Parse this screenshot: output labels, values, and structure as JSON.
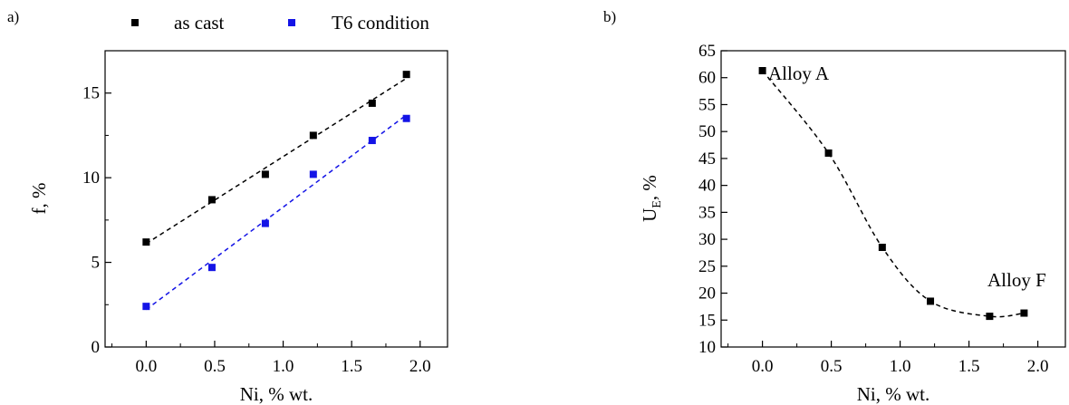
{
  "chart_data": [
    {
      "panel_label": "a)",
      "type": "scatter",
      "xlabel": "Ni, % wt.",
      "ylabel": "f, %",
      "xlim": [
        -0.3,
        2.2
      ],
      "ylim": [
        0,
        17.5
      ],
      "xticks": [
        "0.0",
        "0.5",
        "1.0",
        "1.5",
        "2.0"
      ],
      "yticks": [
        "0",
        "5",
        "10",
        "15"
      ],
      "legend_position": "top",
      "series": [
        {
          "name": "as cast",
          "color": "#000000",
          "trendline": "linear, dashed",
          "points": [
            {
              "x": 0.0,
              "y": 6.2
            },
            {
              "x": 0.48,
              "y": 8.7
            },
            {
              "x": 0.87,
              "y": 10.2
            },
            {
              "x": 1.22,
              "y": 12.5
            },
            {
              "x": 1.65,
              "y": 14.4
            },
            {
              "x": 1.9,
              "y": 16.1
            }
          ]
        },
        {
          "name": "T6 condition",
          "color": "#1414e6",
          "trendline": "linear, dashed",
          "points": [
            {
              "x": 0.0,
              "y": 2.4
            },
            {
              "x": 0.48,
              "y": 4.7
            },
            {
              "x": 0.87,
              "y": 7.3
            },
            {
              "x": 1.22,
              "y": 10.2
            },
            {
              "x": 1.65,
              "y": 12.2
            },
            {
              "x": 1.9,
              "y": 13.5
            }
          ]
        }
      ]
    },
    {
      "panel_label": "b)",
      "type": "scatter",
      "xlabel": "Ni, % wt.",
      "ylabel_main": "U",
      "ylabel_sub": "E",
      "ylabel_rest": ", %",
      "xlim": [
        -0.3,
        2.2
      ],
      "ylim": [
        10,
        65
      ],
      "xticks": [
        "0.0",
        "0.5",
        "1.0",
        "1.5",
        "2.0"
      ],
      "yticks": [
        "10",
        "15",
        "20",
        "25",
        "30",
        "35",
        "40",
        "45",
        "50",
        "55",
        "60",
        "65"
      ],
      "series": [
        {
          "color": "#000000",
          "trendline": "smooth curve, dashed",
          "points": [
            {
              "x": 0.0,
              "y": 61.3
            },
            {
              "x": 0.48,
              "y": 46.0
            },
            {
              "x": 0.87,
              "y": 28.5
            },
            {
              "x": 1.22,
              "y": 18.5
            },
            {
              "x": 1.65,
              "y": 15.7
            },
            {
              "x": 1.9,
              "y": 16.3
            }
          ]
        }
      ],
      "annotations": [
        "Alloy A",
        "Alloy F"
      ]
    }
  ]
}
